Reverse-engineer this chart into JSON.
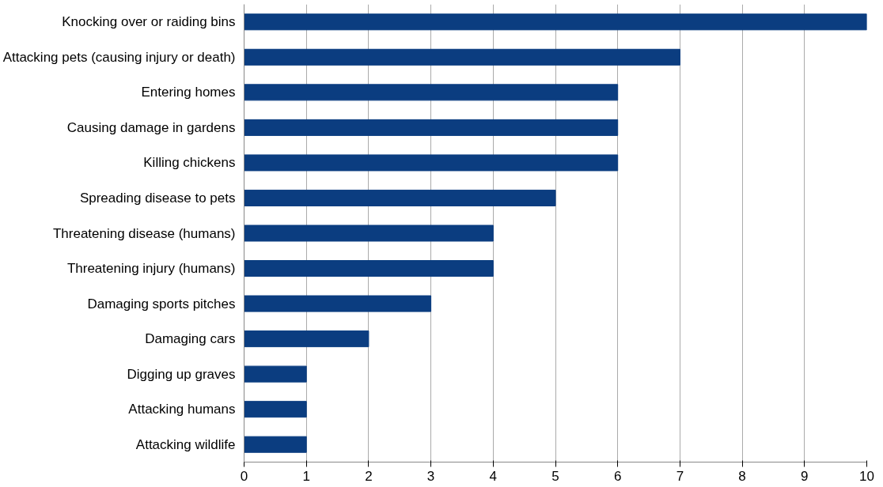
{
  "chart_data": {
    "type": "bar",
    "orientation": "horizontal",
    "categories": [
      "Knocking over or raiding bins",
      "Attacking pets (causing injury or death)",
      "Entering homes",
      "Causing damage in gardens",
      "Killing chickens",
      "Spreading disease to pets",
      "Threatening disease (humans)",
      "Threatening injury (humans)",
      "Damaging sports pitches",
      "Damaging cars",
      "Digging up graves",
      "Attacking humans",
      "Attacking wildlife"
    ],
    "values": [
      10,
      7,
      6,
      6,
      6,
      5,
      4,
      4,
      3,
      2,
      1,
      1,
      1
    ],
    "color": "#0b3d80",
    "xlim": [
      0,
      10
    ],
    "xticks": [
      0,
      1,
      2,
      3,
      4,
      5,
      6,
      7,
      8,
      9,
      10
    ],
    "grid": "x"
  }
}
